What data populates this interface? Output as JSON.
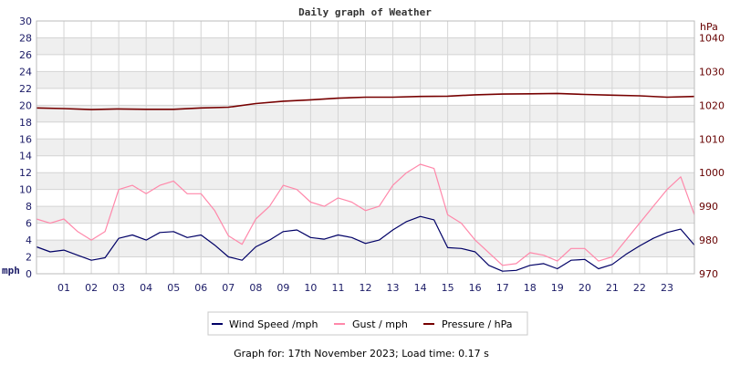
{
  "chart_data": {
    "type": "line",
    "title": "Daily graph of Weather",
    "footer": "Graph for: 17th November 2023; Load time: 0.17 s",
    "left_axis": {
      "unit": "mph",
      "range": [
        0,
        30
      ],
      "ticks": [
        "0",
        "2",
        "4",
        "6",
        "8",
        "10",
        "12",
        "14",
        "16",
        "18",
        "20",
        "22",
        "24",
        "26",
        "28",
        "30"
      ]
    },
    "right_axis": {
      "unit": "hPa",
      "range": [
        970,
        1045
      ],
      "ticks": [
        "970",
        "980",
        "990",
        "1000",
        "1010",
        "1020",
        "1030",
        "1040"
      ]
    },
    "x_axis": {
      "range_hours": [
        0,
        24
      ],
      "tick_labels": [
        "01",
        "02",
        "03",
        "04",
        "05",
        "06",
        "07",
        "08",
        "09",
        "10",
        "11",
        "12",
        "13",
        "14",
        "15",
        "16",
        "17",
        "18",
        "19",
        "20",
        "21",
        "22",
        "23"
      ]
    },
    "grid": true,
    "legend_position": "bottom",
    "series": [
      {
        "name": "Wind Speed /mph",
        "color": "#000066",
        "axis": "left",
        "x": [
          0,
          0.5,
          1,
          1.5,
          2,
          2.5,
          3,
          3.5,
          4,
          4.5,
          5,
          5.5,
          6,
          6.5,
          7,
          7.5,
          8,
          8.5,
          9,
          9.5,
          10,
          10.5,
          11,
          11.5,
          12,
          12.5,
          13,
          13.5,
          14,
          14.5,
          15,
          15.5,
          16,
          16.5,
          17,
          17.5,
          18,
          18.5,
          19,
          19.5,
          20,
          20.5,
          21,
          21.5,
          22,
          22.5,
          23,
          23.5,
          24
        ],
        "y": [
          3.2,
          2.6,
          2.8,
          2.2,
          1.6,
          1.9,
          4.2,
          4.6,
          4.0,
          4.9,
          5.0,
          4.3,
          4.6,
          3.4,
          2.0,
          1.6,
          3.2,
          4.0,
          5.0,
          5.2,
          4.3,
          4.1,
          4.6,
          4.3,
          3.6,
          4.0,
          5.2,
          6.2,
          6.8,
          6.4,
          3.1,
          3.0,
          2.6,
          1.0,
          0.3,
          0.4,
          1.0,
          1.2,
          0.6,
          1.6,
          1.7,
          0.6,
          1.1,
          2.3,
          3.3,
          4.2,
          4.9,
          5.3,
          3.4
        ]
      },
      {
        "name": "Gust / mph",
        "color": "#ff88aa",
        "axis": "left",
        "x": [
          0,
          0.5,
          1,
          1.5,
          2,
          2.5,
          3,
          3.5,
          4,
          4.5,
          5,
          5.5,
          6,
          6.5,
          7,
          7.5,
          8,
          8.5,
          9,
          9.5,
          10,
          10.5,
          11,
          11.5,
          12,
          12.5,
          13,
          13.5,
          14,
          14.5,
          15,
          15.5,
          16,
          16.5,
          17,
          17.5,
          18,
          18.5,
          19,
          19.5,
          20,
          20.5,
          21,
          21.5,
          22,
          22.5,
          23,
          23.5,
          24
        ],
        "y": [
          6.5,
          6.0,
          6.5,
          5.0,
          4.0,
          5.0,
          10.0,
          10.5,
          9.5,
          10.5,
          11.0,
          9.5,
          9.5,
          7.5,
          4.5,
          3.5,
          6.5,
          8.0,
          10.5,
          10.0,
          8.5,
          8.0,
          9.0,
          8.5,
          7.5,
          8.0,
          10.5,
          12.0,
          13.0,
          12.5,
          7.0,
          6.0,
          4.0,
          2.5,
          1.0,
          1.2,
          2.5,
          2.2,
          1.5,
          3.0,
          3.0,
          1.5,
          2.0,
          4.0,
          6.0,
          8.0,
          10.0,
          11.5,
          7.0
        ]
      },
      {
        "name": "Pressure / hPa",
        "color": "#770000",
        "axis": "right",
        "x": [
          0,
          1,
          2,
          3,
          4,
          5,
          6,
          7,
          8,
          9,
          10,
          11,
          12,
          13,
          14,
          15,
          16,
          17,
          18,
          19,
          20,
          21,
          22,
          23,
          24
        ],
        "y": [
          1019.2,
          1019.0,
          1018.7,
          1018.9,
          1018.8,
          1018.8,
          1019.2,
          1019.4,
          1020.5,
          1021.2,
          1021.6,
          1022.1,
          1022.4,
          1022.4,
          1022.6,
          1022.7,
          1023.1,
          1023.3,
          1023.4,
          1023.5,
          1023.2,
          1023.0,
          1022.8,
          1022.4,
          1022.6
        ]
      }
    ]
  }
}
